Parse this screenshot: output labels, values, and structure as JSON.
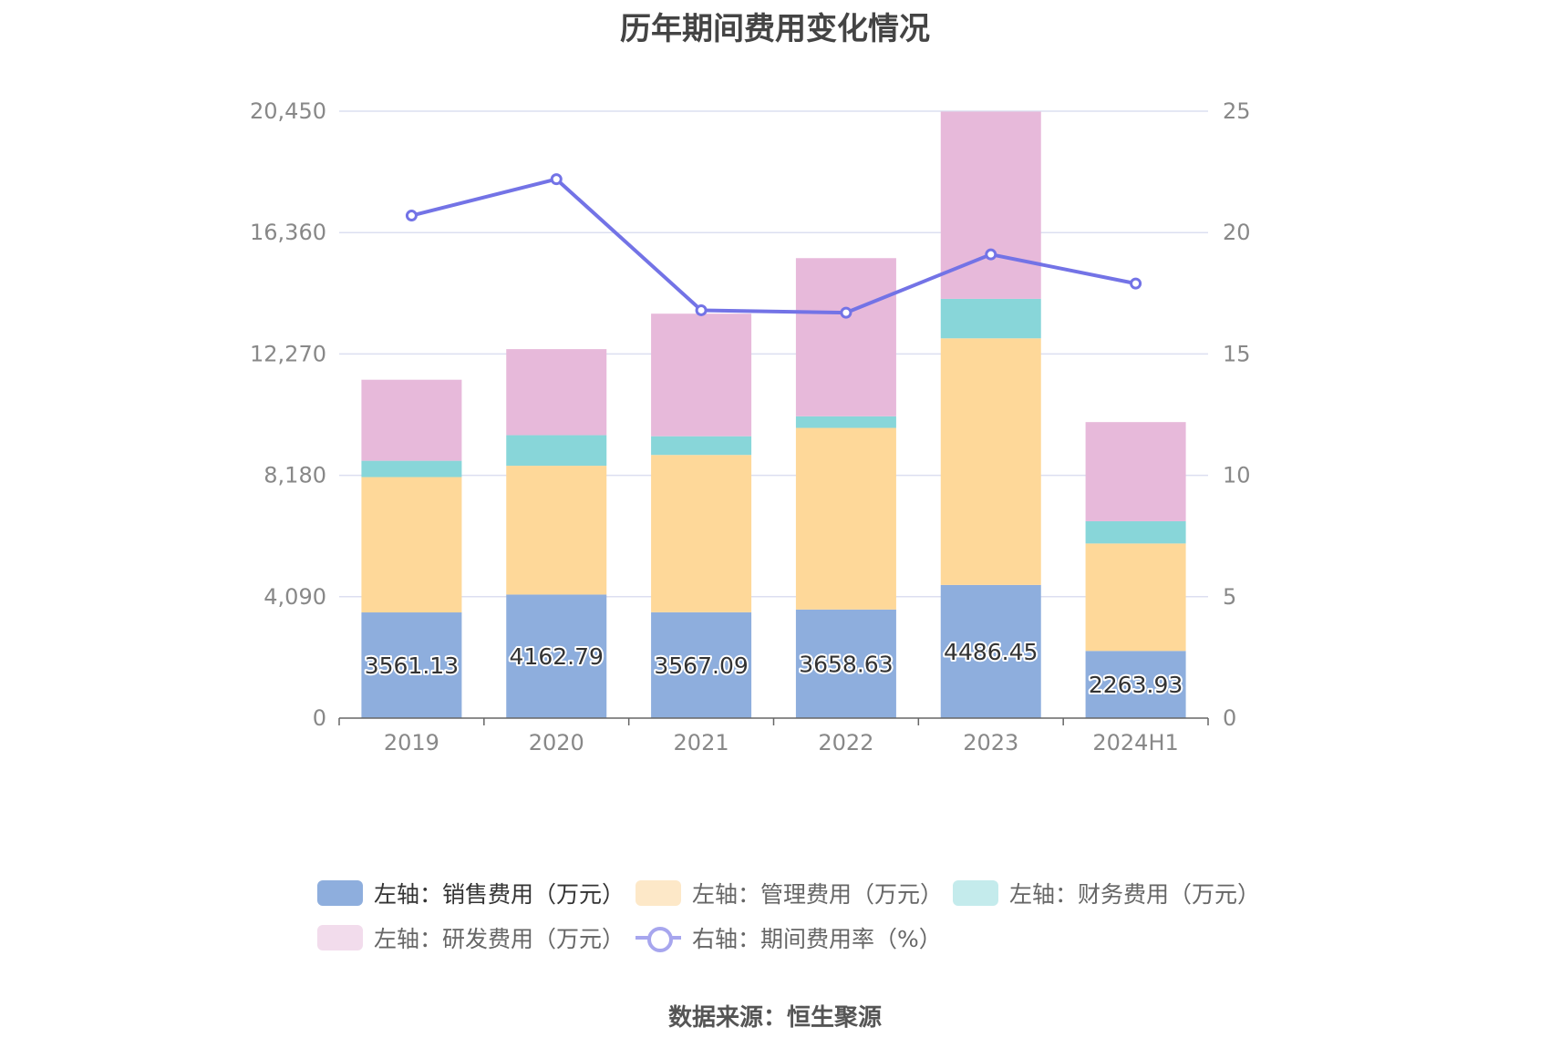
{
  "title": "历年期间费用变化情况",
  "source": "数据来源：恒生聚源",
  "colors": {
    "sales": "#8eaedd",
    "admin": "#fed899",
    "finance": "#88d6d9",
    "rnd": "#e7b9da",
    "rate": "#7373e6",
    "grid": "#dcdff0",
    "axis_text": "#888888"
  },
  "legend": [
    {
      "label": "左轴：销售费用（万元）",
      "swatch": "#8eaedd",
      "icon": "rounded-rect"
    },
    {
      "label": "左轴：管理费用（万元）",
      "swatch": "#fde8c8",
      "icon": "rounded-rect"
    },
    {
      "label": "左轴：财务费用（万元）",
      "swatch": "#c4ebec",
      "icon": "rounded-rect"
    },
    {
      "label": "左轴：研发费用（万元）",
      "swatch": "#f2dcec",
      "icon": "rounded-rect"
    },
    {
      "label": "右轴：期间费用率（%）",
      "swatch": "#a7a6ee",
      "icon": "line-circle"
    }
  ],
  "chart_data": {
    "type": "bar",
    "stacked": true,
    "categories": [
      "2019",
      "2020",
      "2021",
      "2022",
      "2023",
      "2024H1"
    ],
    "left_axis": {
      "min": 0,
      "max": 20450,
      "ticks": [
        0,
        4090,
        8180,
        12270,
        16360,
        20450
      ],
      "tick_labels": [
        "0",
        "4,090",
        "8,180",
        "12,270",
        "16,360",
        "20,450"
      ]
    },
    "right_axis": {
      "min": 0,
      "max": 25,
      "ticks": [
        0,
        5,
        10,
        15,
        20,
        25
      ],
      "tick_labels": [
        "0",
        "5",
        "10",
        "15",
        "20",
        "25"
      ]
    },
    "series": [
      {
        "name": "销售费用（万元）",
        "axis": "left",
        "type": "bar",
        "values": [
          3561.13,
          4162.79,
          3567.09,
          3658.63,
          4486.45,
          2263.93
        ],
        "labels": [
          "3561.13",
          "4162.79",
          "3567.09",
          "3658.63",
          "4486.45",
          "2263.93"
        ]
      },
      {
        "name": "管理费用（万元）",
        "axis": "left",
        "type": "bar",
        "values": [
          4560,
          4340,
          5300,
          6120,
          8310,
          3620
        ]
      },
      {
        "name": "财务费用（万元）",
        "axis": "left",
        "type": "bar",
        "values": [
          550,
          1030,
          630,
          390,
          1330,
          750
        ]
      },
      {
        "name": "研发费用（万元）",
        "axis": "left",
        "type": "bar",
        "values": [
          2730,
          2900,
          4130,
          5330,
          6310,
          3340
        ]
      },
      {
        "name": "期间费用率（%）",
        "axis": "right",
        "type": "line",
        "values": [
          20.7,
          22.2,
          16.8,
          16.7,
          19.1,
          17.9
        ]
      }
    ]
  }
}
